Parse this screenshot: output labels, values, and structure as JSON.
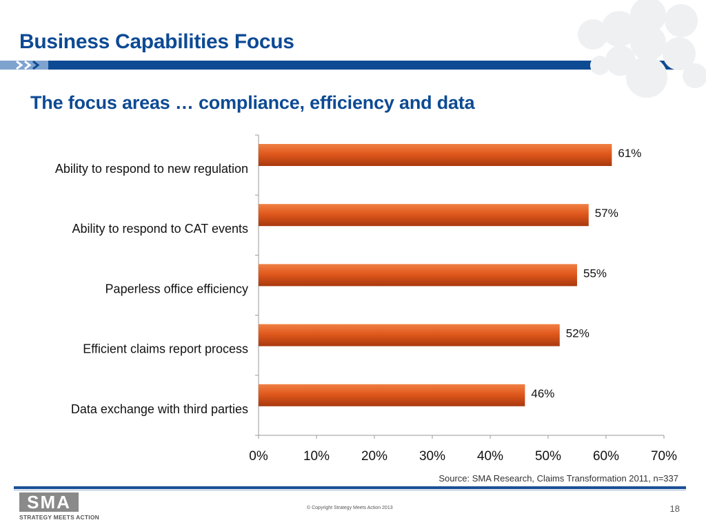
{
  "slide": {
    "title": "Business Capabilities Focus",
    "subtitle": "The focus areas …  compliance, efficiency and data",
    "source": "Source: SMA Research, Claims Transformation 2011, n=337",
    "logo_text": "SMA",
    "logo_tagline": "STRATEGY MEETS ACTION",
    "copyright": "© Copyright Strategy Meets Action 2013",
    "page_number": "18"
  },
  "colors": {
    "title_blue": "#0d4a94",
    "bar_orange": "#e0581c",
    "bar_dark": "#a8380e"
  },
  "chart_data": {
    "type": "bar",
    "orientation": "horizontal",
    "categories": [
      "Ability to respond to new regulation",
      "Ability to respond to CAT events",
      "Paperless office efficiency",
      "Efficient claims report process",
      "Data exchange with third parties"
    ],
    "values": [
      61,
      57,
      55,
      52,
      46
    ],
    "data_labels": [
      "61%",
      "57%",
      "55%",
      "52%",
      "46%"
    ],
    "xticks": [
      "0%",
      "10%",
      "20%",
      "30%",
      "40%",
      "50%",
      "60%",
      "70%"
    ],
    "xlim": [
      0,
      70
    ],
    "grid": false,
    "legend": "none"
  }
}
